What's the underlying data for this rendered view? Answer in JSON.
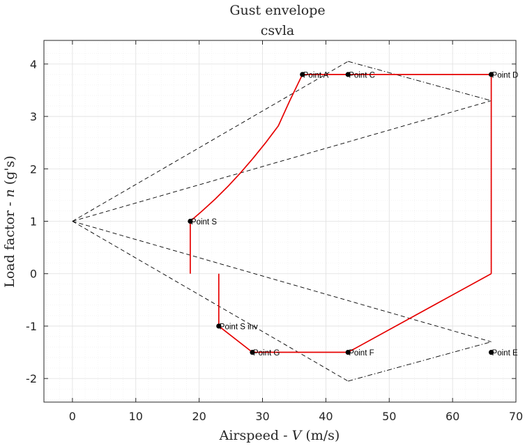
{
  "chart_data": {
    "type": "line",
    "title": "Gust envelope",
    "subtitle": "csvla",
    "xlabel_prefix": "Airspeed - ",
    "xlabel_var": "V",
    "xlabel_suffix": " (m/s)",
    "ylabel_prefix": "Load factor - ",
    "ylabel_var": "n",
    "ylabel_suffix": " (g's)",
    "xlim": [
      -4.5,
      70
    ],
    "ylim": [
      -2.45,
      4.45
    ],
    "xticks": [
      0,
      10,
      20,
      30,
      40,
      50,
      60,
      70
    ],
    "xtick_labels": [
      "0",
      "10",
      "20",
      "30",
      "40",
      "50",
      "60",
      "70"
    ],
    "yticks": [
      -2,
      -1,
      0,
      1,
      2,
      3,
      4
    ],
    "ytick_labels": [
      "-2",
      "-1",
      "0",
      "1",
      "2",
      "3",
      "4"
    ],
    "grid": true,
    "minor_grid": true,
    "colors": {
      "envelope": "#e60000",
      "gust_lines": "#000000",
      "points": "#000000",
      "grid_major": "#dfdfdf",
      "grid_minor": "#ededed",
      "axes": "#262626"
    },
    "envelope_series": [
      {
        "curve": "positive-stall",
        "points": [
          [
            18.6,
            1.0
          ],
          [
            20.5,
            1.2
          ],
          [
            22.5,
            1.42
          ],
          [
            24.5,
            1.66
          ],
          [
            26.5,
            1.92
          ],
          [
            28.5,
            2.2
          ],
          [
            30.5,
            2.5
          ],
          [
            32.5,
            2.82
          ],
          [
            34.3,
            3.3
          ],
          [
            36.3,
            3.8
          ]
        ]
      },
      {
        "curve": "positive-limit",
        "points": [
          [
            36.3,
            3.8
          ],
          [
            43.5,
            3.8
          ],
          [
            66.1,
            3.8
          ]
        ]
      },
      {
        "curve": "dive-speed",
        "points": [
          [
            66.1,
            3.8
          ],
          [
            66.1,
            0.0
          ]
        ]
      },
      {
        "curve": "negative-dive",
        "points": [
          [
            66.1,
            0.0
          ],
          [
            43.5,
            -1.5
          ]
        ]
      },
      {
        "curve": "negative-limit",
        "points": [
          [
            43.5,
            -1.5
          ],
          [
            28.4,
            -1.5
          ]
        ]
      },
      {
        "curve": "negative-stall",
        "points": [
          [
            28.4,
            -1.5
          ],
          [
            23.1,
            -1.0
          ],
          [
            23.1,
            0.0
          ]
        ]
      },
      {
        "curve": "positive-stall-base",
        "points": [
          [
            18.6,
            1.0
          ],
          [
            18.6,
            0.0
          ]
        ]
      }
    ],
    "gust_series": [
      {
        "style": "dashed",
        "points": [
          [
            0,
            1.0
          ],
          [
            43.5,
            4.05
          ]
        ]
      },
      {
        "style": "dashed",
        "points": [
          [
            0,
            1.0
          ],
          [
            66.1,
            3.3
          ]
        ]
      },
      {
        "style": "dashed",
        "points": [
          [
            0,
            1.0
          ],
          [
            43.5,
            -2.05
          ]
        ]
      },
      {
        "style": "dashed",
        "points": [
          [
            0,
            1.0
          ],
          [
            66.1,
            -1.3
          ]
        ]
      },
      {
        "style": "dashdot",
        "points": [
          [
            43.5,
            4.05
          ],
          [
            66.1,
            3.3
          ]
        ]
      },
      {
        "style": "dashdot",
        "points": [
          [
            43.5,
            -2.05
          ],
          [
            66.1,
            -1.3
          ]
        ]
      }
    ],
    "labeled_points": [
      {
        "label": "Point A",
        "x": 36.3,
        "y": 3.8
      },
      {
        "label": "Point C",
        "x": 43.5,
        "y": 3.8
      },
      {
        "label": "Point D",
        "x": 66.1,
        "y": 3.8
      },
      {
        "label": "Point S",
        "x": 18.6,
        "y": 1.0
      },
      {
        "label": "Point S inv",
        "x": 23.1,
        "y": -1.0
      },
      {
        "label": "Point G",
        "x": 28.4,
        "y": -1.5
      },
      {
        "label": "Point F",
        "x": 43.5,
        "y": -1.5
      },
      {
        "label": "Point E",
        "x": 66.1,
        "y": -1.5
      }
    ]
  }
}
